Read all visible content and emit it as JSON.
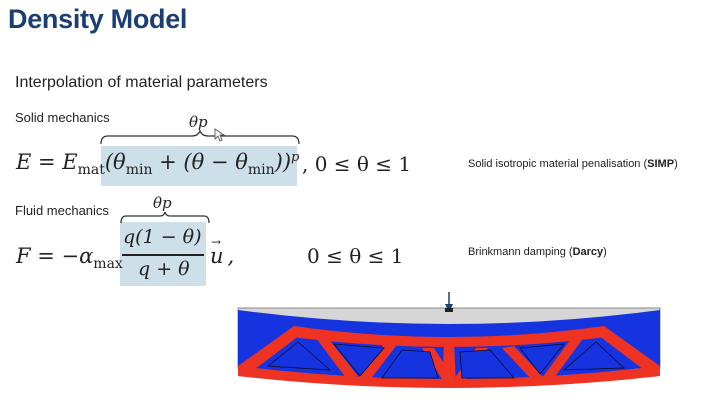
{
  "slide": {
    "title": "Density Model",
    "subtitle": "Interpolation of material parameters"
  },
  "solid": {
    "label": "Solid mechanics",
    "brace_label": "θp",
    "note_text": "Solid isotropic material penalisation (",
    "note_bold": "SIMP",
    "note_close": ")",
    "eq_lhs": "E = E",
    "eq_lhs_sub": "mat",
    "eq_body": "(θ",
    "eq_min1": "min",
    "eq_plus": " + (θ − θ",
    "eq_min2": "min",
    "eq_close": "))",
    "eq_exp": "p",
    "eq_range": ", 0 ≤ θ ≤ 1"
  },
  "fluid": {
    "label": "Fluid mechanics",
    "brace_label": "θp",
    "note_text": "Brinkmann damping (",
    "note_bold": "Darcy",
    "note_close": ")",
    "eq_lhs": "F = −α",
    "eq_lhs_sub": "max",
    "numerator": "q(1 − θ)",
    "denominator": "q + θ",
    "eq_vec": "u",
    "eq_comma": ",",
    "eq_range": "0 ≤ θ ≤ 1"
  },
  "colors": {
    "title": "#1b3f73",
    "highlight": "#cde0ea",
    "solid_material": "#ee3322",
    "void": "#1633e0",
    "beam_border": "#9aa0a6"
  }
}
